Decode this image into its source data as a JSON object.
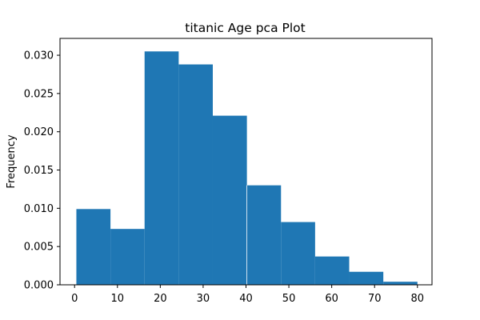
{
  "chart_data": {
    "type": "histogram",
    "title": "titanic Age pca Plot",
    "xlabel": "",
    "ylabel": "Frequency",
    "xlim": [
      -3.4,
      83.4
    ],
    "ylim": [
      0,
      0.0322
    ],
    "bin_edges": [
      0.42,
      8.378,
      16.336,
      24.294,
      32.252,
      40.21,
      48.168,
      56.126,
      64.084,
      72.042,
      80.0
    ],
    "values": [
      0.0099,
      0.0073,
      0.0305,
      0.0288,
      0.0221,
      0.013,
      0.0082,
      0.0037,
      0.0017,
      0.0004
    ],
    "bar_color": "#1f77b4",
    "x_ticks": [
      0,
      10,
      20,
      30,
      40,
      50,
      60,
      70,
      80
    ],
    "x_tick_labels": [
      "0",
      "10",
      "20",
      "30",
      "40",
      "50",
      "60",
      "70",
      "80"
    ],
    "y_ticks": [
      0,
      0.005,
      0.01,
      0.015,
      0.02,
      0.025,
      0.03
    ],
    "y_tick_labels": [
      "0.000",
      "0.005",
      "0.010",
      "0.015",
      "0.020",
      "0.025",
      "0.030"
    ],
    "grid": false,
    "legend": "none"
  }
}
